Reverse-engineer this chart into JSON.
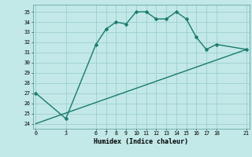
{
  "xlabel": "Humidex (Indice chaleur)",
  "line1_x": [
    0,
    3,
    6,
    7,
    8,
    9,
    10,
    11,
    12,
    13,
    14,
    15,
    16,
    17,
    18,
    21
  ],
  "line1_y": [
    27,
    24.5,
    31.8,
    33.3,
    34.0,
    33.8,
    35.0,
    35.0,
    34.3,
    34.3,
    35.0,
    34.3,
    32.5,
    31.3,
    31.8,
    31.3
  ],
  "line2_x": [
    0,
    21
  ],
  "line2_y": [
    24.0,
    31.3
  ],
  "xticks": [
    0,
    3,
    6,
    7,
    8,
    9,
    10,
    11,
    12,
    13,
    14,
    15,
    16,
    17,
    18,
    21
  ],
  "yticks": [
    24,
    25,
    26,
    27,
    28,
    29,
    30,
    31,
    32,
    33,
    34,
    35
  ],
  "xlim": [
    -0.3,
    21.3
  ],
  "ylim": [
    23.5,
    35.7
  ],
  "line_color": "#1a7a6e",
  "bg_color": "#c2e8e8",
  "grid_color": "#9ecfcf",
  "markersize": 2.5,
  "linewidth": 1.0
}
